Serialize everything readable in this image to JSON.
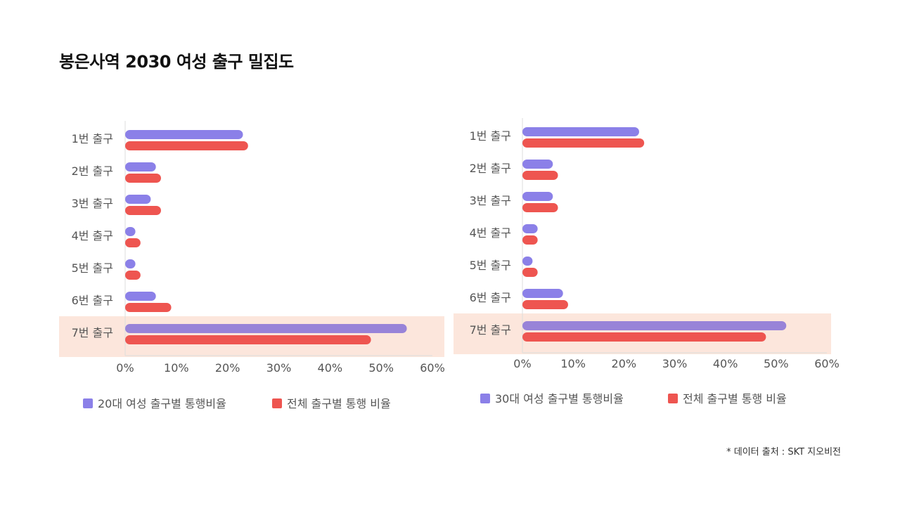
{
  "page": {
    "title": "봉은사역 2030 여성 출구 밀집도",
    "source": "* 데이터 출처 : SKT 지오비전"
  },
  "colors": {
    "series_primary": "#8b80e8",
    "series_secondary": "#ee5550",
    "highlight_bar": "#9883d8",
    "highlight_band": "#fce6dc",
    "axis": "#dddddd",
    "text": "#555555"
  },
  "chart_data": [
    {
      "type": "bar",
      "orientation": "horizontal",
      "categories": [
        "1번 출구",
        "2번 출구",
        "3번 출구",
        "4번 출구",
        "5번 출구",
        "6번 출구",
        "7번 출구"
      ],
      "series": [
        {
          "name": "20대 여성 출구별 통행비율",
          "values": [
            23,
            6,
            5,
            2,
            2,
            6,
            55
          ]
        },
        {
          "name": "전체 출구별 통행 비율",
          "values": [
            24,
            7,
            7,
            3,
            3,
            9,
            48
          ]
        }
      ],
      "xlim": [
        0,
        60
      ],
      "xticks": [
        "0%",
        "10%",
        "20%",
        "30%",
        "40%",
        "50%",
        "60%"
      ],
      "highlight_category": "7번 출구",
      "legend": "bottom",
      "grid": false
    },
    {
      "type": "bar",
      "orientation": "horizontal",
      "categories": [
        "1번 출구",
        "2번 출구",
        "3번 출구",
        "4번 출구",
        "5번 출구",
        "6번 출구",
        "7번 출구"
      ],
      "series": [
        {
          "name": "30대 여성 출구별 통행비율",
          "values": [
            23,
            6,
            6,
            3,
            2,
            8,
            52
          ]
        },
        {
          "name": "전체 출구별 통행 비율",
          "values": [
            24,
            7,
            7,
            3,
            3,
            9,
            48
          ]
        }
      ],
      "xlim": [
        0,
        60
      ],
      "xticks": [
        "0%",
        "10%",
        "20%",
        "30%",
        "40%",
        "50%",
        "60%"
      ],
      "highlight_category": "7번 출구",
      "legend": "bottom",
      "grid": false
    }
  ]
}
